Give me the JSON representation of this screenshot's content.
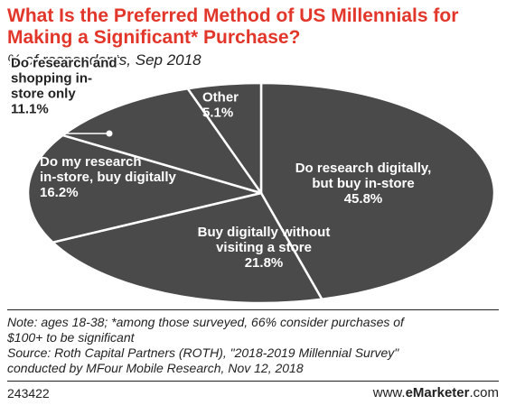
{
  "title": "What Is the Preferred Method of US Millennials for Making a Significant* Purchase?",
  "subtitle": "% of respondents, Sep 2018",
  "colors": {
    "slice_fill": "#4a4a4a",
    "slice_border": "#ffffff",
    "title": "#e3362a"
  },
  "chart_data": {
    "type": "pie",
    "title": "What Is the Preferred Method of US Millennials for Making a Significant* Purchase?",
    "subtitle": "% of respondents, Sep 2018",
    "slices": [
      {
        "label_lines": [
          "Do research digitally,",
          "but buy in-store"
        ],
        "value": 45.8,
        "value_text": "45.8%"
      },
      {
        "label_lines": [
          "Buy digitally without",
          "visiting a store"
        ],
        "value": 21.8,
        "value_text": "21.8%"
      },
      {
        "label_lines": [
          "Do my research",
          "in-store, buy digitally"
        ],
        "value": 16.2,
        "value_text": "16.2%"
      },
      {
        "label_lines": [
          "Do research and",
          "shopping in-",
          "store only"
        ],
        "value": 11.1,
        "value_text": "11.1%"
      },
      {
        "label_lines": [
          "Other"
        ],
        "value": 5.1,
        "value_text": "5.1%"
      }
    ]
  },
  "footnotes": {
    "note_line1": "Note: ages 18-38; *among those surveyed, 66% consider purchases of",
    "note_line2": "$100+ to be significant",
    "source_line1": "Source: Roth Capital Partners (ROTH), \"2018-2019 Millennial Survey\"",
    "source_line2": "conducted by MFour Mobile Research, Nov 12, 2018"
  },
  "footer": {
    "id": "243422",
    "brand_prefix": "www.",
    "brand_bold": "eMarketer",
    "brand_suffix": ".com"
  }
}
